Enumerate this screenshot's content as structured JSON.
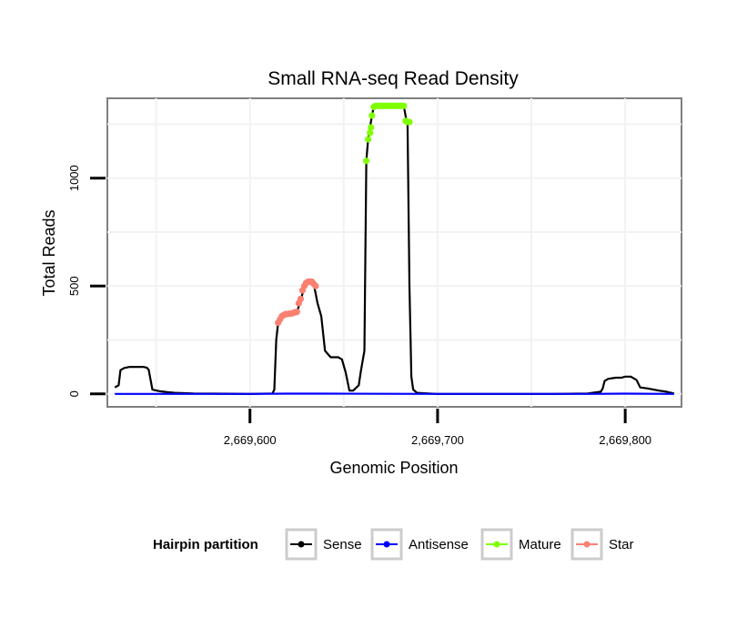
{
  "chart_data": {
    "type": "line",
    "title": "Small RNA-seq Read Density",
    "xlabel": "Genomic Position",
    "ylabel": "Total Reads",
    "xlim": [
      2669524,
      2669830
    ],
    "ylim": [
      -60,
      1370
    ],
    "x_ticks": [
      2669600,
      2669700,
      2669800
    ],
    "x_tick_labels": [
      "2,669,600",
      "2,669,700",
      "2,669,800"
    ],
    "y_ticks": [
      0,
      500,
      1000
    ],
    "y_tick_labels": [
      "0",
      "500",
      "1000"
    ],
    "grid": true,
    "legend": {
      "title": "Hairpin partition",
      "position": "bottom",
      "entries": [
        {
          "label": "Sense",
          "color": "#000000"
        },
        {
          "label": "Antisense",
          "color": "#0000FF"
        },
        {
          "label": "Mature",
          "color": "#7FFF00"
        },
        {
          "label": "Star",
          "color": "#FA8072"
        }
      ]
    },
    "series": [
      {
        "name": "Sense",
        "color": "#000000",
        "x": [
          2669528,
          2669530,
          2669531,
          2669533,
          2669536,
          2669540,
          2669543,
          2669545,
          2669546,
          2669548,
          2669552,
          2669556,
          2669560,
          2669570,
          2669600,
          2669612,
          2669613,
          2669614,
          2669615,
          2669617,
          2669619,
          2669621,
          2669623,
          2669625,
          2669627,
          2669629,
          2669631,
          2669633,
          2669634,
          2669636,
          2669638,
          2669640,
          2669643,
          2669647,
          2669649,
          2669651,
          2669653,
          2669655,
          2669658,
          2669659,
          2669661,
          2669662,
          2669663,
          2669664,
          2669665,
          2669666,
          2669667,
          2669668,
          2669672,
          2669678,
          2669682,
          2669683,
          2669684,
          2669685,
          2669686,
          2669687,
          2669689,
          2669695,
          2669700,
          2669760,
          2669780,
          2669787,
          2669788,
          2669789,
          2669791,
          2669795,
          2669798,
          2669800,
          2669803,
          2669806,
          2669808,
          2669812,
          2669818,
          2669822,
          2669826
        ],
        "values": [
          30,
          40,
          110,
          120,
          125,
          125,
          125,
          122,
          112,
          20,
          12,
          8,
          5,
          2,
          0,
          2,
          20,
          250,
          330,
          360,
          370,
          372,
          375,
          380,
          430,
          500,
          515,
          520,
          510,
          420,
          360,
          200,
          170,
          170,
          160,
          100,
          15,
          15,
          40,
          100,
          200,
          1080,
          1180,
          1235,
          1290,
          1330,
          1335,
          1335,
          1335,
          1335,
          1335,
          1285,
          1255,
          500,
          80,
          20,
          5,
          2,
          0,
          0,
          2,
          10,
          25,
          60,
          70,
          75,
          75,
          80,
          80,
          65,
          30,
          25,
          15,
          10,
          2
        ]
      },
      {
        "name": "Antisense",
        "color": "#0000FF",
        "x": [
          2669528,
          2669600,
          2669620,
          2669640,
          2669700,
          2669780,
          2669800,
          2669826
        ],
        "values": [
          0,
          0,
          1,
          1,
          0,
          0,
          1,
          0
        ]
      },
      {
        "name": "Mature",
        "color": "#7FFF00",
        "x": [
          2669662,
          2669663,
          2669664,
          2669664.5,
          2669665,
          2669666,
          2669667,
          2669668,
          2669669,
          2669670,
          2669671,
          2669672,
          2669673,
          2669674,
          2669675,
          2669676,
          2669677,
          2669678,
          2669679,
          2669680,
          2669681,
          2669682,
          2669683,
          2669684,
          2669685
        ],
        "values": [
          1080,
          1180,
          1210,
          1235,
          1290,
          1330,
          1335,
          1335,
          1335,
          1335,
          1335,
          1335,
          1335,
          1335,
          1335,
          1335,
          1335,
          1335,
          1335,
          1335,
          1335,
          1335,
          1265,
          1260,
          1260
        ]
      },
      {
        "name": "Star",
        "color": "#FA8072",
        "x": [
          2669615,
          2669616,
          2669617,
          2669618,
          2669619,
          2669620,
          2669621,
          2669622,
          2669623,
          2669624,
          2669625,
          2669626,
          2669627,
          2669628,
          2669629,
          2669630,
          2669631,
          2669632,
          2669633,
          2669634,
          2669635
        ],
        "values": [
          330,
          345,
          360,
          365,
          370,
          370,
          372,
          372,
          375,
          378,
          380,
          420,
          440,
          480,
          500,
          515,
          520,
          520,
          520,
          510,
          500
        ]
      }
    ]
  }
}
